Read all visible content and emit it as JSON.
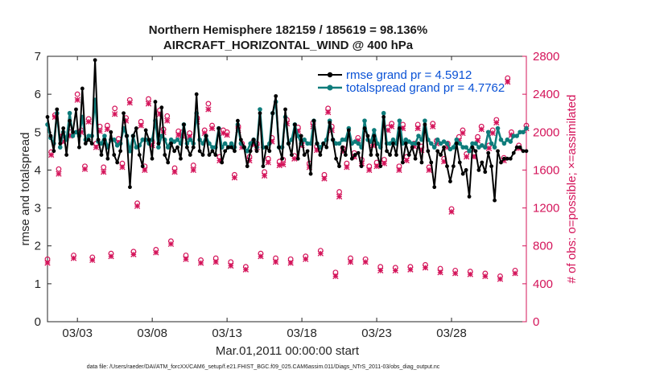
{
  "chart_data": {
    "type": "line",
    "title": "Northern Hemisphere 182159 / 185619 = 98.136%",
    "subtitle": "AIRCRAFT_HORIZONTAL_WIND @ 400 hPa",
    "xlabel": "Mar.01,2011 00:00:00 start",
    "ylabel": "rmse and totalspread",
    "ylabel_right": "# of obs: o=possible; ×=assimilated",
    "footnote": "data file: /Users/raeder/DAI/ATM_forcXX/CAM6_setup/f.e21.FHIST_BGC.f09_025.CAM6assim.011/Diags_NTrS_2011-03/obs_diag_output.nc",
    "xlim": [
      1,
      33
    ],
    "ylim": [
      0,
      7
    ],
    "ylim_right": [
      0,
      2800
    ],
    "xticks": [
      3,
      8,
      13,
      18,
      23,
      28
    ],
    "xtick_labels": [
      "03/03",
      "03/08",
      "03/13",
      "03/18",
      "03/23",
      "03/28"
    ],
    "yticks": [
      "0",
      "1",
      "2",
      "3",
      "4",
      "5",
      "6",
      "7"
    ],
    "yticks_right": [
      "0",
      "400",
      "800",
      "1200",
      "1600",
      "2000",
      "2400",
      "2800"
    ],
    "legend_position": "top-right",
    "series": [
      {
        "name": "rmse grand pr = 4.5912",
        "color": "#000000",
        "marker": "dot",
        "values": [
          5.4,
          4.9,
          4.5,
          5.6,
          4.7,
          5.1,
          4.4,
          5.3,
          5.0,
          5.6,
          4.6,
          6.15,
          4.7,
          4.8,
          4.7,
          6.9,
          4.8,
          4.4,
          4.8,
          4.3,
          5.0,
          4.4,
          4.2,
          4.5,
          5.5,
          4.9,
          3.55,
          4.9,
          5.1,
          4.4,
          4.1,
          5.05,
          4.8,
          4.3,
          5.8,
          4.7,
          5.65,
          4.4,
          4.2,
          4.7,
          4.5,
          4.6,
          4.3,
          5.2,
          4.6,
          4.4,
          4.6,
          6.0,
          4.5,
          4.4,
          4.9,
          4.4,
          4.5,
          4.4,
          5.1,
          4.2,
          4.5,
          4.6,
          4.6,
          4.5,
          5.3,
          4.8,
          4.6,
          4.1,
          4.5,
          4.8,
          4.5,
          5.5,
          4.1,
          4.6,
          4.5,
          5.5,
          5.95,
          4.6,
          4.3,
          5.6,
          4.7,
          4.4,
          5.2,
          4.3,
          4.9,
          4.4,
          4.5,
          3.9,
          5.3,
          4.7,
          4.4,
          4.7,
          4.6,
          5.25,
          4.8,
          4.3,
          4.1,
          4.6,
          4.4,
          5.05,
          4.3,
          4.4,
          4.45,
          4.1,
          5.1,
          4.9,
          4.4,
          4.9,
          4.4,
          4.1,
          5.4,
          4.5,
          4.4,
          4.7,
          4.4,
          5.1,
          4.2,
          4.7,
          4.4,
          4.6,
          4.3,
          4.7,
          4.2,
          5.2,
          4.5,
          4.2,
          3.55,
          4.5,
          4.4,
          4.6,
          4.1,
          3.7,
          4.1,
          4.7,
          4.2,
          3.9,
          4.0,
          3.3,
          4.6,
          4.5,
          4.0,
          4.2,
          3.95,
          4.45,
          4.1,
          3.2,
          4.5,
          4.2,
          4.3,
          4.3,
          4.3,
          4.45,
          4.6,
          4.6,
          4.5,
          4.5
        ]
      },
      {
        "name": "totalspread grand pr = 4.7762",
        "color": "#0e7c7b",
        "marker": "dot",
        "values": [
          5.2,
          4.85,
          4.7,
          5.5,
          4.6,
          5.0,
          4.8,
          5.5,
          4.9,
          5.0,
          4.9,
          5.4,
          4.8,
          4.9,
          4.9,
          5.85,
          4.75,
          4.7,
          4.9,
          4.6,
          4.8,
          4.8,
          4.65,
          4.7,
          5.1,
          4.9,
          4.5,
          4.9,
          4.6,
          4.65,
          4.8,
          4.8,
          4.7,
          4.8,
          5.3,
          4.6,
          4.9,
          4.8,
          4.6,
          4.8,
          4.75,
          4.8,
          4.7,
          5.2,
          4.7,
          4.8,
          4.7,
          5.5,
          4.8,
          4.7,
          4.9,
          4.7,
          4.6,
          4.6,
          5.1,
          4.6,
          4.7,
          4.6,
          4.7,
          4.6,
          5.2,
          4.7,
          4.6,
          4.5,
          4.7,
          4.8,
          4.6,
          5.6,
          4.6,
          4.6,
          4.7,
          5.5,
          5.8,
          4.6,
          4.6,
          5.4,
          4.7,
          4.8,
          5.2,
          4.9,
          4.7,
          4.8,
          4.7,
          4.7,
          5.3,
          4.7,
          4.6,
          4.7,
          4.8,
          5.3,
          4.8,
          4.7,
          4.7,
          4.8,
          4.8,
          5.1,
          4.7,
          4.75,
          4.7,
          4.6,
          5.3,
          4.8,
          4.75,
          5.05,
          4.7,
          4.6,
          5.5,
          4.7,
          4.7,
          4.8,
          4.7,
          5.3,
          4.7,
          4.8,
          4.75,
          4.7,
          4.7,
          4.9,
          4.8,
          5.3,
          4.8,
          4.7,
          4.6,
          4.8,
          4.7,
          4.75,
          4.7,
          4.55,
          4.6,
          4.8,
          4.7,
          4.6,
          4.6,
          4.5,
          4.7,
          4.7,
          4.6,
          4.65,
          4.6,
          5.0,
          4.7,
          4.6,
          5.1,
          4.8,
          4.7,
          4.8,
          4.75,
          4.9,
          4.9,
          5.0,
          5.0,
          5.1
        ]
      }
    ],
    "obs_counts": {
      "color": "#d4145a",
      "x": [
        1.0,
        1.25,
        1.5,
        1.75,
        2.0,
        2.5,
        2.75,
        3.0,
        3.25,
        3.5,
        3.75,
        4.0,
        4.25,
        4.5,
        4.75,
        5.0,
        5.25,
        5.5,
        5.75,
        6.0,
        6.25,
        6.5,
        6.75,
        7.0,
        7.25,
        7.5,
        7.75,
        8.0,
        8.25,
        8.5,
        8.75,
        9.0,
        9.25,
        9.5,
        9.75,
        10.0,
        10.25,
        10.5,
        10.75,
        11.0,
        11.25,
        11.5,
        11.75,
        12.0,
        12.25,
        12.5,
        12.75,
        13.0,
        13.25,
        13.5,
        13.75,
        14.0,
        14.25,
        14.5,
        14.75,
        15.0,
        15.25,
        15.5,
        15.75,
        16.0,
        16.25,
        16.5,
        16.75,
        17.0,
        17.25,
        17.5,
        17.75,
        18.0,
        18.25,
        18.5,
        18.75,
        19.0,
        19.25,
        19.5,
        19.75,
        20.0,
        20.25,
        20.5,
        20.75,
        21.0,
        21.25,
        21.5,
        21.75,
        22.0,
        22.25,
        22.5,
        22.75,
        23.0,
        23.25,
        23.5,
        23.75,
        24.0,
        24.25,
        24.5,
        24.75,
        25.0,
        25.25,
        25.5,
        25.75,
        26.0,
        26.25,
        26.5,
        26.75,
        27.0,
        27.25,
        27.5,
        27.75,
        28.0,
        28.25,
        28.5,
        28.75,
        29.0,
        29.25,
        29.5,
        29.75,
        30.0,
        30.25,
        30.5,
        30.75,
        31.0,
        31.25,
        31.5,
        31.75,
        32.0,
        32.25,
        32.5,
        33.0
      ],
      "possible": [
        660,
        1790,
        2180,
        1610,
        1960,
        2000,
        700,
        2400,
        2020,
        1640,
        2140,
        680,
        1880,
        2060,
        1630,
        2070,
        720,
        2250,
        1930,
        1670,
        2150,
        2340,
        740,
        1250,
        2110,
        1640,
        2350,
        1900,
        760,
        2230,
        2030,
        2170,
        850,
        1620,
        2010,
        2000,
        700,
        1990,
        1650,
        2150,
        650,
        2020,
        2300,
        2070,
        670,
        1740,
        2020,
        2000,
        630,
        1550,
        2060,
        1880,
        580,
        1740,
        1900,
        1880,
        720,
        1580,
        1720,
        1940,
        670,
        1690,
        1710,
        2130,
        660,
        1750,
        2050,
        1900,
        690,
        1670,
        2100,
        1850,
        750,
        1550,
        2250,
        2060,
        520,
        1370,
        1830,
        1670,
        670,
        1780,
        1940,
        1710,
        660,
        1640,
        1890,
        1680,
        580,
        1710,
        2050,
        2090,
        570,
        1640,
        2080,
        1740,
        580,
        1880,
        2080,
        1850,
        600,
        1630,
        2090,
        1910,
        560,
        1720,
        1880,
        1190,
        540,
        1950,
        2020,
        1770,
        530,
        1780,
        1950,
        2060,
        510,
        1860,
        2020,
        2130,
        480,
        1730,
        2570,
        2000,
        540,
        1860,
        2070,
        2060,
        0
      ],
      "assimilated": [
        620,
        1760,
        2160,
        1560,
        1900,
        1960,
        670,
        2340,
        2000,
        1610,
        2110,
        650,
        1840,
        2010,
        1580,
        2030,
        690,
        2190,
        1890,
        1630,
        2120,
        2310,
        710,
        1220,
        2070,
        1600,
        2300,
        1860,
        730,
        2190,
        2000,
        2120,
        820,
        1580,
        1970,
        1960,
        660,
        1950,
        1600,
        2110,
        620,
        1990,
        2240,
        2040,
        630,
        1700,
        1990,
        1970,
        590,
        1520,
        2020,
        1840,
        550,
        1700,
        1870,
        1840,
        690,
        1540,
        1680,
        1900,
        630,
        1650,
        1660,
        2090,
        620,
        1720,
        2010,
        1860,
        660,
        1630,
        2060,
        1810,
        720,
        1510,
        2210,
        2020,
        480,
        1320,
        1800,
        1630,
        630,
        1740,
        1910,
        1670,
        630,
        1600,
        1860,
        1640,
        540,
        1670,
        2020,
        2060,
        540,
        1600,
        2040,
        1700,
        550,
        1850,
        2040,
        1810,
        570,
        1600,
        2060,
        1880,
        520,
        1690,
        1840,
        1160,
        510,
        1910,
        1990,
        1740,
        500,
        1740,
        1910,
        2030,
        480,
        1830,
        1990,
        2100,
        450,
        1700,
        2530,
        1970,
        510,
        1830,
        2040,
        2030,
        0
      ]
    }
  }
}
